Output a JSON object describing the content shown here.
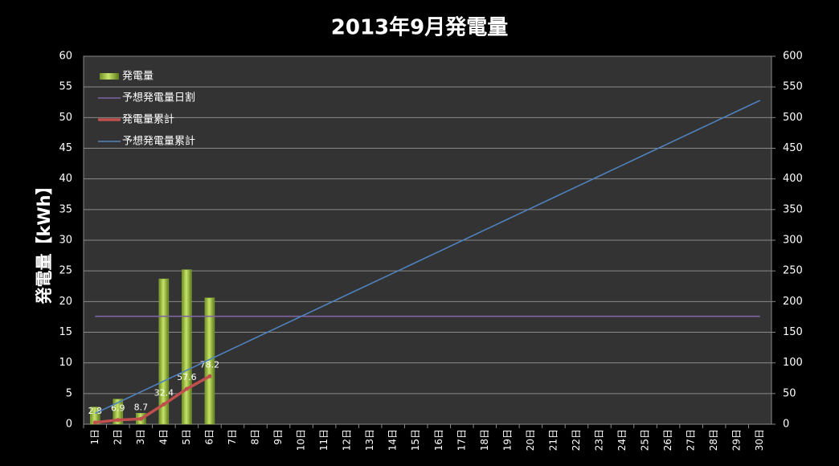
{
  "chart_data": {
    "type": "bar_line",
    "title": "2013年9月発電量",
    "ylabel": "発電量【kWh】",
    "categories": [
      "1日",
      "2日",
      "3日",
      "4日",
      "5日",
      "6日",
      "7日",
      "8日",
      "9日",
      "10日",
      "11日",
      "12日",
      "13日",
      "14日",
      "15日",
      "16日",
      "17日",
      "18日",
      "19日",
      "20日",
      "21日",
      "22日",
      "23日",
      "24日",
      "25日",
      "26日",
      "27日",
      "28日",
      "29日",
      "30日"
    ],
    "series": [
      {
        "name": "発電量",
        "kind": "bar",
        "color": "#8db33a",
        "axis": "y",
        "values": [
          2.8,
          4.1,
          1.8,
          23.7,
          25.2,
          20.6,
          null,
          null,
          null,
          null,
          null,
          null,
          null,
          null,
          null,
          null,
          null,
          null,
          null,
          null,
          null,
          null,
          null,
          null,
          null,
          null,
          null,
          null,
          null,
          null
        ]
      },
      {
        "name": "予想発電量日割",
        "kind": "line",
        "color": "#8064a2",
        "axis": "y",
        "values": [
          17.6,
          17.6,
          17.6,
          17.6,
          17.6,
          17.6,
          17.6,
          17.6,
          17.6,
          17.6,
          17.6,
          17.6,
          17.6,
          17.6,
          17.6,
          17.6,
          17.6,
          17.6,
          17.6,
          17.6,
          17.6,
          17.6,
          17.6,
          17.6,
          17.6,
          17.6,
          17.6,
          17.6,
          17.6,
          17.6
        ]
      },
      {
        "name": "発電量累計",
        "kind": "line",
        "color": "#c0504d",
        "axis": "y2",
        "markers": true,
        "data_labels": true,
        "values": [
          2.8,
          6.9,
          8.7,
          32.4,
          57.6,
          78.2,
          null,
          null,
          null,
          null,
          null,
          null,
          null,
          null,
          null,
          null,
          null,
          null,
          null,
          null,
          null,
          null,
          null,
          null,
          null,
          null,
          null,
          null,
          null,
          null
        ]
      },
      {
        "name": "予想発電量累計",
        "kind": "line",
        "color": "#4f81bd",
        "axis": "y2",
        "values": [
          17.6,
          35.2,
          52.8,
          70.4,
          88,
          105.6,
          123.2,
          140.8,
          158.4,
          176,
          193.6,
          211.2,
          228.8,
          246.4,
          264,
          281.6,
          299.2,
          316.8,
          334.4,
          352,
          369.6,
          387.2,
          404.8,
          422.4,
          440,
          457.6,
          475.2,
          492.8,
          510.4,
          528
        ]
      }
    ],
    "ylim": [
      0,
      60
    ],
    "yticks": [
      0,
      5,
      10,
      15,
      20,
      25,
      30,
      35,
      40,
      45,
      50,
      55,
      60
    ],
    "y2lim": [
      0,
      600
    ],
    "y2ticks": [
      0,
      50,
      100,
      150,
      200,
      250,
      300,
      350,
      400,
      450,
      500,
      550,
      600
    ],
    "grid": true,
    "legend": "top-left"
  }
}
